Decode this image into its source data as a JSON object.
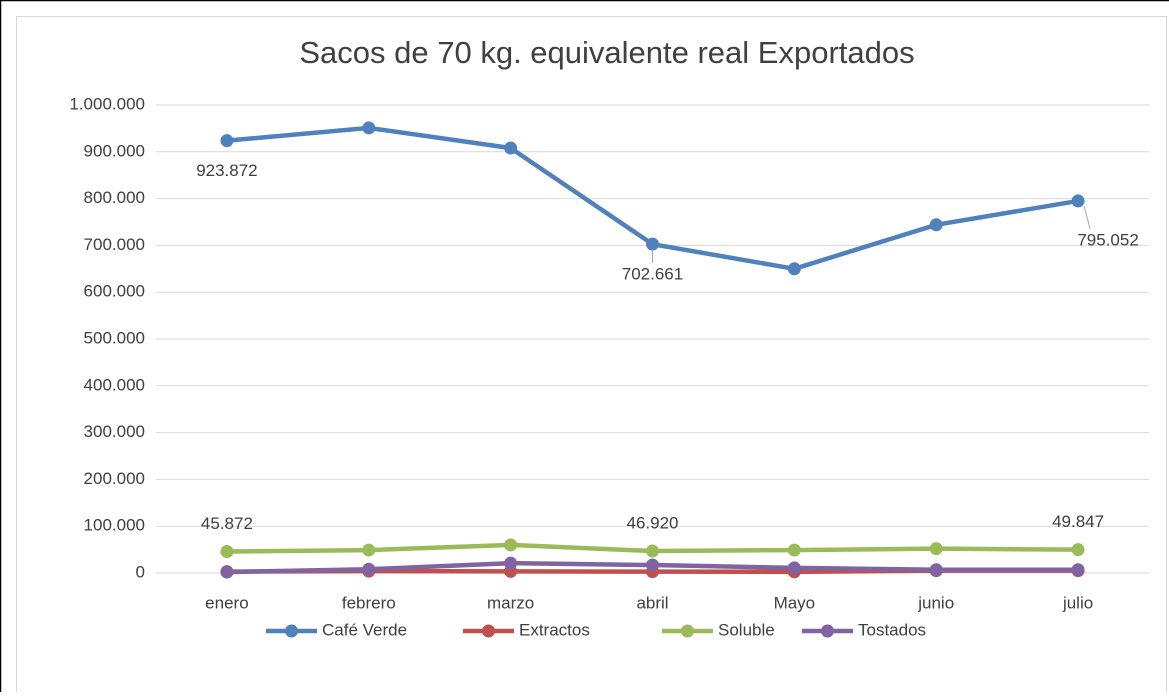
{
  "chart_data": {
    "type": "line",
    "title": "Sacos de 70 kg. equivalente real Exportados",
    "categories": [
      "enero",
      "febrero",
      "marzo",
      "abril",
      "Mayo",
      "junio",
      "julio"
    ],
    "ylim": [
      0,
      1000000
    ],
    "yticks": [
      0,
      {
        "value": 100000,
        "label": "100.000"
      },
      {
        "value": 200000,
        "label": "200.000"
      },
      {
        "value": 300000,
        "label": "300.000"
      },
      {
        "value": 400000,
        "label": "400.000"
      },
      {
        "value": 500000,
        "label": "500.000"
      },
      {
        "value": 600000,
        "label": "600.000"
      },
      {
        "value": 700000,
        "label": "700.000"
      },
      {
        "value": 800000,
        "label": "800.000"
      },
      {
        "value": 900000,
        "label": "900.000"
      },
      {
        "value": 1000000,
        "label": "1.000.000"
      }
    ],
    "grid": true,
    "legend": "bottom",
    "series": [
      {
        "name": "Café Verde",
        "color": "#4f81bd",
        "values": [
          923872,
          951000,
          908000,
          702661,
          650000,
          744000,
          795052
        ],
        "value_labels": [
          "923.872",
          null,
          null,
          "702.661",
          null,
          null,
          "795.052"
        ]
      },
      {
        "name": "Extractos",
        "color": "#c0504d",
        "values": [
          3000,
          4000,
          3500,
          3000,
          2500,
          5000,
          5000
        ]
      },
      {
        "name": "Soluble",
        "color": "#9bbb59",
        "values": [
          45872,
          49000,
          60000,
          46920,
          49000,
          52000,
          49847
        ],
        "value_labels": [
          "45.872",
          null,
          null,
          "46.920",
          null,
          null,
          "49.847"
        ]
      },
      {
        "name": "Tostados",
        "color": "#8064a2",
        "values": [
          2000,
          8000,
          21000,
          17000,
          11000,
          7000,
          7000
        ]
      }
    ]
  }
}
